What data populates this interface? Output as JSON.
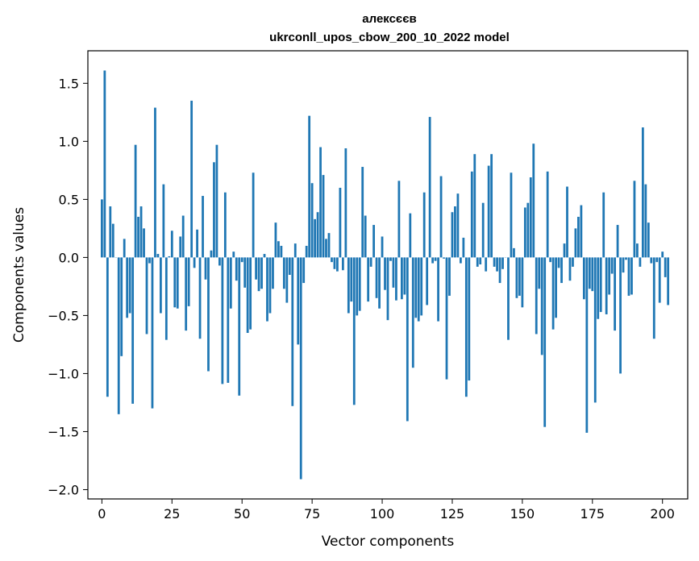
{
  "chart_data": {
    "type": "bar",
    "title": "алексєєв",
    "subtitle": "ukrconll_upos_cbow_200_10_2022 model",
    "xlabel": "Vector components",
    "ylabel": "Components values",
    "xlim": [
      -5,
      209
    ],
    "ylim": [
      -2.08,
      1.78
    ],
    "xticks": [
      0,
      25,
      50,
      75,
      100,
      125,
      150,
      175,
      200
    ],
    "yticks": [
      -2.0,
      -1.5,
      -1.0,
      -0.5,
      0.0,
      0.5,
      1.0,
      1.5
    ],
    "ytick_labels": [
      "−2.0",
      "−1.5",
      "−1.0",
      "−0.5",
      "0.0",
      "0.5",
      "1.0",
      "1.5"
    ],
    "bar_color": "#1f77b4",
    "values": [
      0.5,
      1.61,
      -1.2,
      0.44,
      0.29,
      0.0,
      -1.35,
      -0.85,
      0.16,
      -0.52,
      -0.48,
      -1.26,
      0.97,
      0.35,
      0.44,
      0.25,
      -0.66,
      -0.05,
      -1.3,
      1.29,
      0.03,
      -0.48,
      0.63,
      -0.71,
      0.01,
      0.23,
      -0.43,
      -0.44,
      0.18,
      0.36,
      -0.63,
      -0.42,
      1.35,
      -0.09,
      0.24,
      -0.7,
      0.53,
      -0.19,
      -0.98,
      0.06,
      0.82,
      0.97,
      -0.07,
      -1.09,
      0.56,
      -1.08,
      -0.44,
      0.05,
      -0.2,
      -1.19,
      -0.04,
      -0.26,
      -0.65,
      -0.62,
      0.73,
      -0.19,
      -0.29,
      -0.27,
      0.03,
      -0.55,
      -0.48,
      -0.27,
      0.3,
      0.14,
      0.1,
      -0.27,
      -0.39,
      -0.15,
      -1.28,
      0.12,
      -0.75,
      -1.91,
      -0.22,
      0.1,
      1.22,
      0.64,
      0.33,
      0.39,
      0.95,
      0.71,
      0.16,
      0.21,
      -0.04,
      -0.1,
      -0.12,
      0.6,
      -0.11,
      0.94,
      -0.48,
      -0.38,
      -1.27,
      -0.5,
      -0.46,
      0.78,
      0.36,
      -0.38,
      -0.08,
      0.28,
      -0.35,
      -0.44,
      0.18,
      -0.28,
      -0.54,
      -0.03,
      -0.26,
      -0.37,
      0.66,
      -0.36,
      -0.32,
      -1.41,
      0.38,
      -0.95,
      -0.52,
      -0.55,
      -0.5,
      0.56,
      -0.41,
      1.21,
      -0.05,
      -0.03,
      -0.55,
      0.7,
      -0.01,
      -1.05,
      -0.33,
      0.39,
      0.44,
      0.55,
      -0.05,
      0.17,
      -1.2,
      -1.06,
      0.74,
      0.89,
      -0.08,
      -0.06,
      0.47,
      -0.12,
      0.79,
      0.89,
      -0.08,
      -0.12,
      -0.22,
      -0.1,
      0.0,
      -0.71,
      0.73,
      0.08,
      -0.35,
      -0.33,
      -0.43,
      0.43,
      0.47,
      0.69,
      0.98,
      -0.66,
      -0.27,
      -0.84,
      -1.46,
      0.74,
      -0.04,
      -0.62,
      -0.52,
      -0.09,
      -0.22,
      0.12,
      0.61,
      -0.2,
      -0.08,
      0.25,
      0.35,
      0.45,
      -0.36,
      -1.51,
      -0.27,
      -0.29,
      -1.25,
      -0.53,
      -0.47,
      0.56,
      -0.49,
      -0.32,
      -0.14,
      -0.63,
      0.28,
      -1.0,
      -0.13,
      -0.02,
      -0.33,
      -0.32,
      0.66,
      0.12,
      -0.08,
      1.12,
      0.63,
      0.3,
      -0.05,
      -0.7,
      -0.04,
      -0.39,
      0.05,
      -0.17,
      -0.41
    ]
  }
}
